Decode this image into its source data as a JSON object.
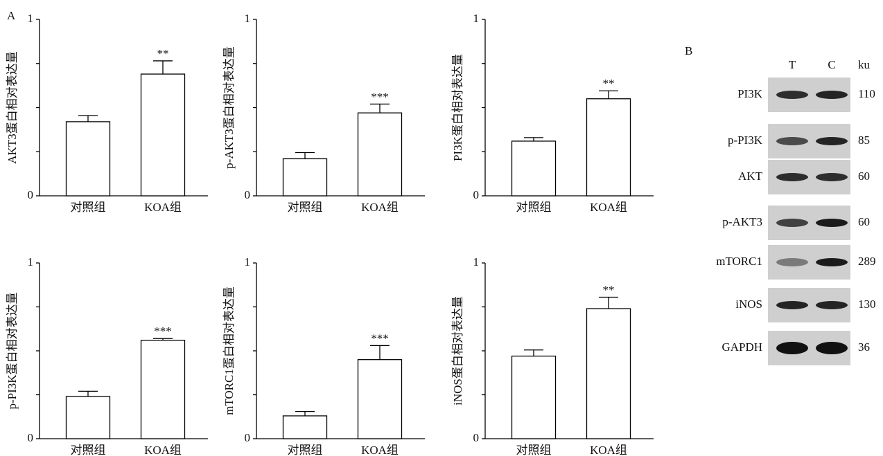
{
  "panel_label": "A",
  "chart_data": [
    {
      "type": "bar",
      "ylabel": "AKT3蛋白相对表达量",
      "categories": [
        "对照组",
        "KOA组"
      ],
      "values": [
        0.42,
        0.69
      ],
      "errors": [
        0.035,
        0.075
      ],
      "annotations": [
        null,
        "**"
      ],
      "color": "#ffffff",
      "edgecolor": "#000000",
      "ylim": [
        0,
        1
      ],
      "yticks": [
        0,
        1
      ],
      "minor_yticks": [
        0.25,
        0.5,
        0.75
      ]
    },
    {
      "type": "bar",
      "ylabel": "p-AKT3蛋白相对表达量",
      "categories": [
        "对照组",
        "KOA组"
      ],
      "values": [
        0.21,
        0.47
      ],
      "errors": [
        0.035,
        0.05
      ],
      "annotations": [
        null,
        "***"
      ],
      "color": "#ffffff",
      "edgecolor": "#000000",
      "ylim": [
        0,
        1
      ],
      "yticks": [
        0,
        1
      ],
      "minor_yticks": [
        0.25,
        0.5,
        0.75
      ]
    },
    {
      "type": "bar",
      "ylabel": "PI3K蛋白相对表达量",
      "categories": [
        "对照组",
        "KOA组"
      ],
      "values": [
        0.31,
        0.55
      ],
      "errors": [
        0.02,
        0.045
      ],
      "annotations": [
        null,
        "**"
      ],
      "color": "#ffffff",
      "edgecolor": "#000000",
      "ylim": [
        0,
        1
      ],
      "yticks": [
        0,
        1
      ],
      "minor_yticks": [
        0.25,
        0.5,
        0.75
      ]
    },
    {
      "type": "bar",
      "ylabel": "p-PI3K蛋白相对表达量",
      "categories": [
        "对照组",
        "KOA组"
      ],
      "values": [
        0.24,
        0.56
      ],
      "errors": [
        0.03,
        0.01
      ],
      "annotations": [
        null,
        "***"
      ],
      "color": "#ffffff",
      "edgecolor": "#000000",
      "ylim": [
        0,
        1
      ],
      "yticks": [
        0,
        1
      ],
      "minor_yticks": [
        0.25,
        0.5,
        0.75
      ]
    },
    {
      "type": "bar",
      "ylabel": "mTORC1蛋白相对表达量",
      "categories": [
        "对照组",
        "KOA组"
      ],
      "values": [
        0.13,
        0.45
      ],
      "errors": [
        0.025,
        0.08
      ],
      "annotations": [
        null,
        "***"
      ],
      "color": "#ffffff",
      "edgecolor": "#000000",
      "ylim": [
        0,
        1
      ],
      "yticks": [
        0,
        1
      ],
      "minor_yticks": [
        0.25,
        0.5,
        0.75
      ]
    },
    {
      "type": "bar",
      "ylabel": "iNOS蛋白相对表达量",
      "categories": [
        "对照组",
        "KOA组"
      ],
      "values": [
        0.47,
        0.74
      ],
      "errors": [
        0.035,
        0.065
      ],
      "annotations": [
        null,
        "**"
      ],
      "color": "#ffffff",
      "edgecolor": "#000000",
      "ylim": [
        0,
        1
      ],
      "yticks": [
        0,
        1
      ],
      "minor_yticks": [
        0.25,
        0.5,
        0.75
      ]
    }
  ],
  "blot": {
    "panel_label": "B",
    "lanes": [
      "T",
      "C"
    ],
    "unit": "ku",
    "rows": [
      {
        "protein": "PI3K",
        "size": 110
      },
      {
        "protein": "p-PI3K",
        "size": 85
      },
      {
        "protein": "AKT",
        "size": 60
      },
      {
        "protein": "p-AKT3",
        "size": 60
      },
      {
        "protein": "mTORC1",
        "size": 289
      },
      {
        "protein": "iNOS",
        "size": 130
      },
      {
        "protein": "GAPDH",
        "size": 36
      }
    ]
  }
}
